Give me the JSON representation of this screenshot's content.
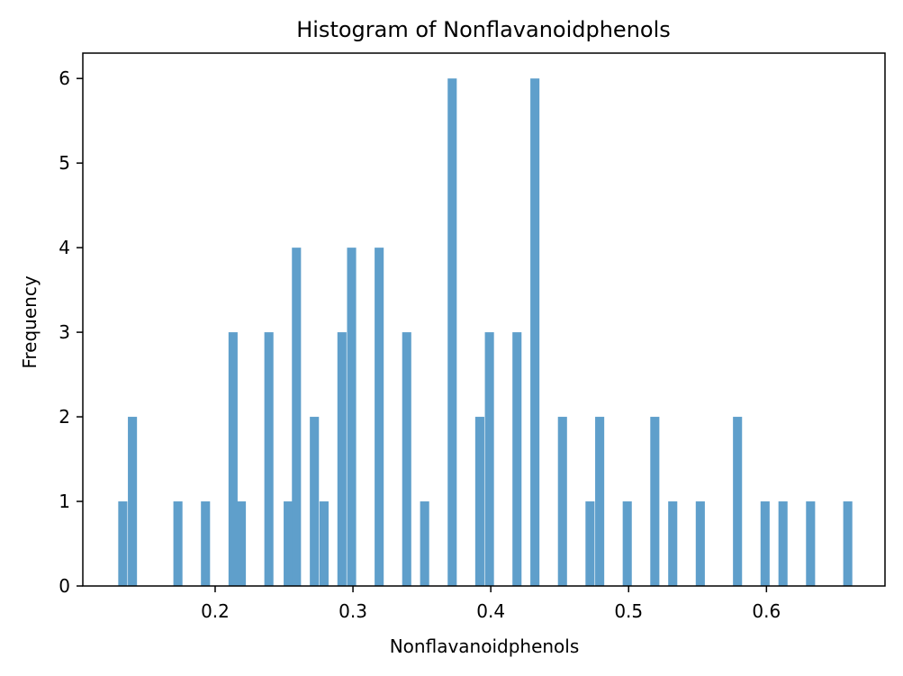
{
  "chart_data": {
    "type": "bar",
    "title": "Histogram of Nonflavanoidphenols",
    "xlabel": "Nonflavanoidphenols",
    "ylabel": "Frequency",
    "xlim": [
      0.104,
      0.686
    ],
    "ylim": [
      0,
      6.3
    ],
    "xticks": [
      0.2,
      0.3,
      0.4,
      0.5,
      0.6
    ],
    "xtick_labels": [
      "0.2",
      "0.3",
      "0.4",
      "0.5",
      "0.6"
    ],
    "yticks": [
      0,
      1,
      2,
      3,
      4,
      5,
      6
    ],
    "ytick_labels": [
      "0",
      "1",
      "2",
      "3",
      "4",
      "5",
      "6"
    ],
    "bin_width": 0.0066,
    "bar_color": "#5f9fcb",
    "grid": false,
    "bins": [
      {
        "x": 0.133,
        "count": 1
      },
      {
        "x": 0.14,
        "count": 2
      },
      {
        "x": 0.173,
        "count": 1
      },
      {
        "x": 0.193,
        "count": 1
      },
      {
        "x": 0.213,
        "count": 3
      },
      {
        "x": 0.219,
        "count": 1
      },
      {
        "x": 0.239,
        "count": 3
      },
      {
        "x": 0.253,
        "count": 1
      },
      {
        "x": 0.259,
        "count": 4
      },
      {
        "x": 0.272,
        "count": 2
      },
      {
        "x": 0.279,
        "count": 1
      },
      {
        "x": 0.292,
        "count": 3
      },
      {
        "x": 0.299,
        "count": 4
      },
      {
        "x": 0.319,
        "count": 4
      },
      {
        "x": 0.339,
        "count": 3
      },
      {
        "x": 0.352,
        "count": 1
      },
      {
        "x": 0.372,
        "count": 6
      },
      {
        "x": 0.392,
        "count": 2
      },
      {
        "x": 0.399,
        "count": 3
      },
      {
        "x": 0.419,
        "count": 3
      },
      {
        "x": 0.432,
        "count": 6
      },
      {
        "x": 0.452,
        "count": 2
      },
      {
        "x": 0.472,
        "count": 1
      },
      {
        "x": 0.479,
        "count": 2
      },
      {
        "x": 0.499,
        "count": 1
      },
      {
        "x": 0.519,
        "count": 2
      },
      {
        "x": 0.532,
        "count": 1
      },
      {
        "x": 0.552,
        "count": 1
      },
      {
        "x": 0.579,
        "count": 2
      },
      {
        "x": 0.599,
        "count": 1
      },
      {
        "x": 0.612,
        "count": 1
      },
      {
        "x": 0.632,
        "count": 1
      },
      {
        "x": 0.659,
        "count": 1
      }
    ]
  }
}
